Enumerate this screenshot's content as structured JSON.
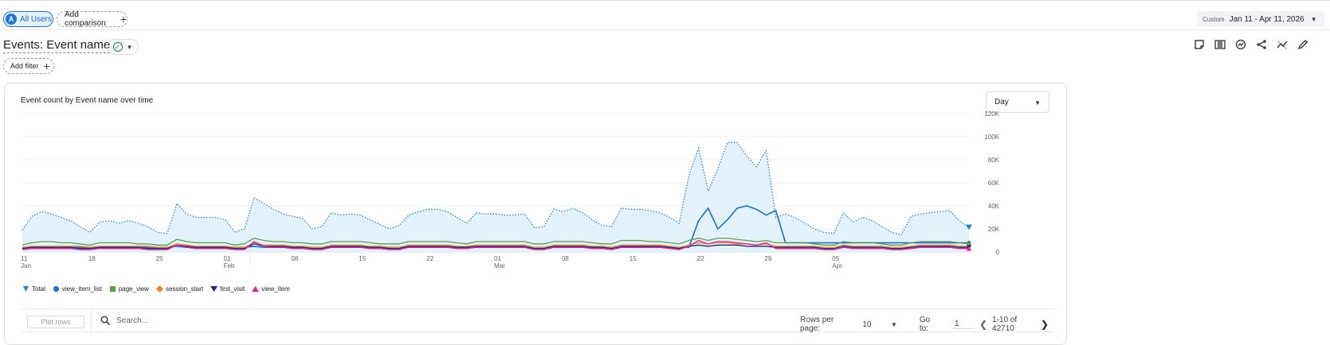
{
  "compare_bar": {
    "segment_avatar": "A",
    "segment_label": "All Users",
    "add_comparison_label": "Add comparison",
    "date_custom_label": "Custom",
    "date_range": "Jan 11 - Apr 11, 2026"
  },
  "report": {
    "title": "Events: Event name",
    "add_filter_label": "Add filter"
  },
  "toolbar_icons": [
    "notes-icon",
    "compare-icon",
    "insights-icon",
    "share-icon",
    "trend-icon",
    "edit-icon"
  ],
  "card": {
    "chart_title": "Event count by Event name over time",
    "granularity": "Day",
    "plot_rows_label": "Plot rows",
    "search_placeholder": "Search...",
    "rows_per_page_label": "Rows per page:",
    "rows_per_page_value": "10",
    "goto_label": "Go to:",
    "goto_value": "1",
    "page_range": "1-10 of 42710"
  },
  "colors": {
    "total": "#2e86c1",
    "view_item_list": "#1e6fd0",
    "page_view": "#5a9e4a",
    "session_start": "#e8872a",
    "first_visit": "#1f2a7a",
    "view_item": "#e52592",
    "accent": "#1a73e8"
  },
  "chart_data": {
    "type": "area",
    "title": "Event count by Event name over time",
    "x_start": "2026-01-11",
    "x_tick_labels": [
      {
        "day": 0,
        "top": "11",
        "bottom": "Jan"
      },
      {
        "day": 7,
        "top": "18",
        "bottom": ""
      },
      {
        "day": 14,
        "top": "25",
        "bottom": ""
      },
      {
        "day": 21,
        "top": "01",
        "bottom": "Feb"
      },
      {
        "day": 28,
        "top": "08",
        "bottom": ""
      },
      {
        "day": 35,
        "top": "15",
        "bottom": ""
      },
      {
        "day": 42,
        "top": "22",
        "bottom": ""
      },
      {
        "day": 49,
        "top": "01",
        "bottom": "Mar"
      },
      {
        "day": 56,
        "top": "08",
        "bottom": ""
      },
      {
        "day": 63,
        "top": "15",
        "bottom": ""
      },
      {
        "day": 70,
        "top": "22",
        "bottom": ""
      },
      {
        "day": 77,
        "top": "29",
        "bottom": ""
      },
      {
        "day": 84,
        "top": "05",
        "bottom": "Apr"
      }
    ],
    "y_ticks": [
      "0",
      "20K",
      "40K",
      "60K",
      "80K",
      "100K",
      "120K"
    ],
    "ylim": [
      0,
      120000
    ],
    "grid": true,
    "legend_position": "bottom-left",
    "series": [
      {
        "name": "Total",
        "key": "total",
        "style": "dotted-area",
        "marker": "pin",
        "values": [
          19000,
          31000,
          35000,
          33000,
          30000,
          27000,
          22000,
          17000,
          26000,
          27000,
          25000,
          27000,
          25000,
          22000,
          17000,
          16000,
          42000,
          33000,
          30000,
          30000,
          30000,
          28000,
          17000,
          20000,
          47000,
          42000,
          37000,
          33000,
          31000,
          29000,
          20000,
          22000,
          34000,
          32000,
          33000,
          32000,
          28000,
          24000,
          20000,
          23000,
          32000,
          35000,
          37000,
          37000,
          35000,
          30000,
          25000,
          34000,
          33000,
          33000,
          32000,
          32000,
          33000,
          21000,
          22000,
          37000,
          35000,
          38000,
          34000,
          28000,
          23000,
          22000,
          38000,
          37000,
          37000,
          36000,
          34000,
          30000,
          25000,
          66000,
          90000,
          53000,
          72000,
          95000,
          95000,
          83000,
          74000,
          88000,
          30000,
          33000,
          30000,
          25000,
          20000,
          17000,
          16000,
          34000,
          26000,
          30000,
          27000,
          22000,
          17000,
          15000,
          31000,
          33000,
          34000,
          35000,
          36000,
          27000,
          21000
        ]
      },
      {
        "name": "view_item_list",
        "key": "view_item_list",
        "style": "line",
        "marker": "circle",
        "values": [
          4000,
          4000,
          4000,
          4000,
          4000,
          4000,
          4000,
          4000,
          4000,
          4000,
          4000,
          4000,
          4000,
          4000,
          4000,
          4000,
          5000,
          4000,
          4000,
          4000,
          4000,
          4000,
          4000,
          4000,
          5000,
          4000,
          4000,
          4000,
          4000,
          4000,
          4000,
          4000,
          4000,
          4000,
          4000,
          4000,
          4000,
          4000,
          4000,
          4000,
          4000,
          4000,
          4000,
          4000,
          4000,
          4000,
          4000,
          4000,
          4000,
          4000,
          4000,
          4000,
          4000,
          4000,
          4000,
          4000,
          4000,
          4000,
          4000,
          4000,
          4000,
          4000,
          4000,
          4000,
          4000,
          4000,
          4000,
          4000,
          4000,
          4000,
          27000,
          38000,
          20000,
          28000,
          38000,
          40000,
          37000,
          32000,
          36000,
          8000,
          8000,
          8000,
          8000,
          8000,
          8000,
          8000,
          8000,
          8000,
          8000,
          8000,
          8000,
          8000,
          8000,
          8000,
          8000,
          8000,
          8000,
          8000,
          8000
        ]
      },
      {
        "name": "page_view",
        "key": "page_view",
        "style": "line",
        "marker": "square",
        "values": [
          6000,
          8000,
          9000,
          9000,
          8000,
          8000,
          7000,
          6000,
          8000,
          8000,
          8000,
          8000,
          7000,
          7000,
          6000,
          6000,
          11000,
          9000,
          8000,
          8000,
          8000,
          8000,
          6000,
          7000,
          12000,
          10000,
          9000,
          9000,
          8000,
          8000,
          7000,
          7000,
          9000,
          9000,
          9000,
          9000,
          8000,
          7000,
          7000,
          7000,
          9000,
          9000,
          9000,
          9000,
          9000,
          8000,
          7000,
          9000,
          9000,
          9000,
          9000,
          9000,
          9000,
          7000,
          7000,
          9000,
          9000,
          9000,
          9000,
          8000,
          7000,
          7000,
          10000,
          10000,
          10000,
          9000,
          9000,
          8000,
          7000,
          10000,
          12000,
          10000,
          12000,
          12000,
          11000,
          10000,
          9000,
          10000,
          8000,
          8000,
          8000,
          8000,
          7000,
          6000,
          6000,
          9000,
          8000,
          8000,
          8000,
          7000,
          6000,
          6000,
          8000,
          9000,
          9000,
          9000,
          9000,
          8000,
          7000
        ]
      },
      {
        "name": "session_start",
        "key": "session_start",
        "style": "line",
        "marker": "diamond",
        "values": [
          4000,
          5000,
          5000,
          5000,
          5000,
          5000,
          5000,
          4000,
          5000,
          5000,
          5000,
          5000,
          5000,
          5000,
          4000,
          4000,
          7000,
          6000,
          5000,
          5000,
          5000,
          5000,
          4000,
          4000,
          8000,
          6000,
          6000,
          6000,
          5000,
          5000,
          4000,
          4000,
          6000,
          6000,
          6000,
          6000,
          5000,
          5000,
          4000,
          4000,
          6000,
          6000,
          6000,
          6000,
          6000,
          5000,
          5000,
          6000,
          6000,
          6000,
          6000,
          6000,
          6000,
          4000,
          4000,
          6000,
          6000,
          6000,
          6000,
          5000,
          5000,
          4000,
          6000,
          6000,
          6000,
          6000,
          6000,
          5000,
          4000,
          6000,
          8000,
          7000,
          8000,
          8000,
          7000,
          7000,
          6000,
          7000,
          5000,
          5000,
          5000,
          5000,
          5000,
          4000,
          4000,
          6000,
          5000,
          5000,
          5000,
          5000,
          4000,
          4000,
          5000,
          6000,
          6000,
          6000,
          6000,
          5000,
          5000
        ]
      },
      {
        "name": "first_visit",
        "key": "first_visit",
        "style": "line",
        "marker": "triangle-down",
        "values": [
          3000,
          4000,
          4000,
          4000,
          4000,
          4000,
          3000,
          3000,
          4000,
          4000,
          4000,
          4000,
          4000,
          3000,
          3000,
          3000,
          6000,
          5000,
          4000,
          4000,
          4000,
          4000,
          3000,
          3000,
          7000,
          5000,
          5000,
          5000,
          4000,
          4000,
          3000,
          3000,
          5000,
          5000,
          5000,
          5000,
          4000,
          4000,
          3000,
          3000,
          5000,
          5000,
          5000,
          5000,
          5000,
          4000,
          4000,
          5000,
          5000,
          5000,
          5000,
          5000,
          5000,
          3000,
          3000,
          5000,
          5000,
          5000,
          5000,
          4000,
          4000,
          3000,
          5000,
          5000,
          5000,
          5000,
          5000,
          4000,
          3000,
          5000,
          6000,
          5000,
          6000,
          6000,
          6000,
          5000,
          5000,
          5000,
          4000,
          4000,
          4000,
          4000,
          4000,
          3000,
          3000,
          5000,
          4000,
          4000,
          4000,
          4000,
          3000,
          3000,
          4000,
          5000,
          5000,
          5000,
          5000,
          4000,
          4000
        ]
      },
      {
        "name": "view_item",
        "key": "view_item",
        "style": "line",
        "marker": "triangle-up",
        "values": [
          2000,
          3000,
          3000,
          3000,
          3000,
          3000,
          2000,
          2000,
          3000,
          3000,
          3000,
          3000,
          3000,
          2000,
          2000,
          2000,
          6000,
          4000,
          3000,
          3000,
          3000,
          3000,
          2000,
          2000,
          9000,
          5000,
          4000,
          4000,
          3000,
          3000,
          2000,
          2000,
          4000,
          4000,
          4000,
          4000,
          3000,
          3000,
          2000,
          2000,
          4000,
          4000,
          4000,
          4000,
          4000,
          3000,
          3000,
          4000,
          4000,
          4000,
          4000,
          4000,
          4000,
          2000,
          2000,
          4000,
          4000,
          4000,
          4000,
          3000,
          3000,
          2000,
          4000,
          4000,
          4000,
          4000,
          4000,
          3000,
          2000,
          5000,
          10000,
          7000,
          9000,
          9000,
          8000,
          7000,
          6000,
          8000,
          3000,
          3000,
          3000,
          3000,
          3000,
          2000,
          2000,
          4000,
          3000,
          3000,
          3000,
          3000,
          2000,
          2000,
          3000,
          4000,
          4000,
          4000,
          4000,
          3000,
          3000
        ]
      }
    ]
  }
}
